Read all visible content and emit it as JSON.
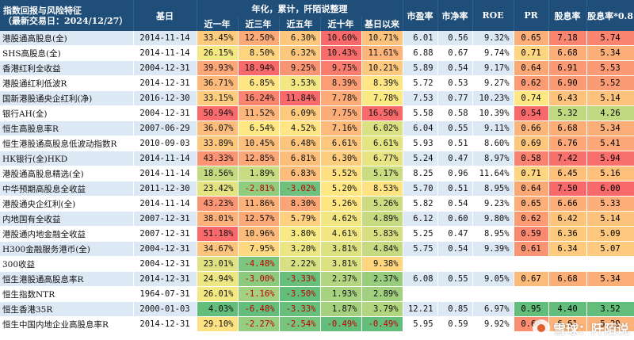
{
  "header": {
    "title": "指数回报与风险特征",
    "subtitle": "（最新交易日：2024/12/27）",
    "base_date": "基日",
    "group": "年化，累计，阡陌说整理",
    "periods": [
      "近一年",
      "近三年",
      "近五年",
      "近十年",
      "基日以来"
    ],
    "metrics": [
      "市盈率",
      "市净率",
      "ROE",
      "PR",
      "股息率",
      "股息率*0.8"
    ]
  },
  "rows": [
    {
      "name": "港股通高股息(全)",
      "date": "2014-11-14",
      "r": [
        "33.45%",
        "12.50%",
        "6.30%",
        "10.60%",
        "10.71%"
      ],
      "m": [
        "6.01",
        "0.56",
        "9.32%",
        "0.65",
        "7.18",
        "5.74"
      ]
    },
    {
      "name": "SHS高股息(全)",
      "date": "2014-11-14",
      "r": [
        "26.15%",
        "8.50%",
        "6.32%",
        "10.43%",
        "11.61%"
      ],
      "m": [
        "6.88",
        "0.67",
        "9.74%",
        "0.71",
        "6.68",
        "5.34"
      ]
    },
    {
      "name": "香港红利全收益",
      "date": "2004-12-31",
      "r": [
        "39.93%",
        "18.94%",
        "9.25%",
        "9.75%",
        "10.21%"
      ],
      "m": [
        "5.89",
        "0.54",
        "9.17%",
        "0.64",
        "6.91",
        "5.53"
      ]
    },
    {
      "name": "港股通红利低波R",
      "date": "2014-12-31",
      "r": [
        "36.71%",
        "6.85%",
        "3.53%",
        "8.39%",
        "8.39%"
      ],
      "m": [
        "5.72",
        "0.53",
        "9.27%",
        "0.62",
        "6.90",
        "5.52"
      ]
    },
    {
      "name": "国新港股通央企红利(净)",
      "date": "2016-12-30",
      "r": [
        "33.15%",
        "16.24%",
        "11.84%",
        "7.78%",
        "7.78%"
      ],
      "m": [
        "7.53",
        "0.77",
        "10.23%",
        "0.74",
        "6.43",
        "5.14"
      ]
    },
    {
      "name": "银行AH(全)",
      "date": "2004-12-31",
      "r": [
        "50.94%",
        "11.52%",
        "6.09%",
        "7.75%",
        "16.50%"
      ],
      "m": [
        "5.58",
        "0.58",
        "10.39%",
        "0.54",
        "5.32",
        "4.26"
      ]
    },
    {
      "name": "恒生高股息率R",
      "date": "2007-06-29",
      "r": [
        "36.07%",
        "6.54%",
        "4.52%",
        "7.16%",
        "6.02%"
      ],
      "m": [
        "6.04",
        "0.55",
        "9.11%",
        "0.66",
        "6.68",
        "5.34"
      ]
    },
    {
      "name": "恒生港股通高股息低波动指数R",
      "date": "2010-09-03",
      "r": [
        "33.89%",
        "10.45%",
        "6.48%",
        "6.61%",
        "6.61%"
      ],
      "m": [
        "5.93",
        "0.51",
        "8.60%",
        "0.69",
        "6.76",
        "5.41"
      ]
    },
    {
      "name": "HK银行(全)HKD",
      "date": "2014-11-14",
      "r": [
        "43.33%",
        "12.85%",
        "6.81%",
        "6.30%",
        "6.77%"
      ],
      "m": [
        "5.24",
        "0.47",
        "8.97%",
        "0.58",
        "7.42",
        "5.94"
      ]
    },
    {
      "name": "港股通高股息精选(全)",
      "date": "2014-11-14",
      "r": [
        "18.56%",
        "1.89%",
        "6.83%",
        "5.52%",
        "5.17%"
      ],
      "m": [
        "8.25",
        "0.96",
        "11.64%",
        "0.71",
        "6.45",
        "5.16"
      ]
    },
    {
      "name": "中华预期高股息全收益",
      "date": "2011-12-30",
      "r": [
        "23.42%",
        "-2.81%",
        "-3.02%",
        "5.20%",
        "8.53%"
      ],
      "m": [
        "5.70",
        "0.51",
        "8.95%",
        "0.64",
        "7.50",
        "6.00"
      ]
    },
    {
      "name": "港股通央企红利(全)",
      "date": "2014-11-14",
      "r": [
        "43.23%",
        "11.86%",
        "8.30%",
        "5.26%",
        "5.26%"
      ],
      "m": [
        "5.82",
        "0.54",
        "9.23%",
        "0.65",
        "6.66",
        "5.33"
      ]
    },
    {
      "name": "内地国有全收益",
      "date": "2007-12-31",
      "r": [
        "38.01%",
        "12.57%",
        "5.79%",
        "4.62%",
        "4.89%"
      ],
      "m": [
        "6.12",
        "0.60",
        "9.80%",
        "0.62",
        "6.42",
        "5.14"
      ]
    },
    {
      "name": "港股通内地金融全收益",
      "date": "2007-12-31",
      "r": [
        "51.18%",
        "10.96%",
        "3.80%",
        "4.61%",
        "5.83%"
      ],
      "m": [
        "5.25",
        "0.47",
        "8.95%",
        "0.59",
        "6.36",
        "5.09"
      ]
    },
    {
      "name": "H300金融服务港币(全)",
      "date": "2004-12-31",
      "r": [
        "34.67%",
        "7.95%",
        "3.20%",
        "3.81%",
        "4.84%"
      ],
      "m": [
        "5.75",
        "0.54",
        "9.39%",
        "0.61",
        "6.34",
        "5.07"
      ]
    },
    {
      "name": "300收益",
      "date": "2004-12-31",
      "r": [
        "23.01%",
        "-4.48%",
        "2.22%",
        "3.81%",
        "9.38%"
      ],
      "m": [
        "",
        "",
        "",
        "",
        "",
        ""
      ]
    },
    {
      "name": "恒生港股通高股息率R",
      "date": "2014-12-31",
      "r": [
        "24.94%",
        "-3.00%",
        "-3.33%",
        "2.37%",
        "2.37%"
      ],
      "m": [
        "6.08",
        "0.55",
        "9.05%",
        "0.67",
        "6.68",
        "5.34"
      ]
    },
    {
      "name": "恒生指数NTR",
      "date": "1964-07-31",
      "r": [
        "26.01%",
        "-1.16%",
        "-3.50%",
        "1.93%",
        "2.89%"
      ],
      "m": [
        "",
        "",
        "",
        "",
        "",
        ""
      ]
    },
    {
      "name": "恒生香港35R",
      "date": "2000-01-03",
      "r": [
        "4.03%",
        "-6.48%",
        "-3.33%",
        "1.87%",
        "3.79%"
      ],
      "m": [
        "12.21",
        "0.85",
        "6.97%",
        "0.95",
        "4.40",
        "3.52"
      ]
    },
    {
      "name": "恒生中国内地企业高股息率R",
      "date": "2014-12-31",
      "r": [
        "29.10%",
        "-2.27%",
        "-2.54%",
        "-0.49%",
        "-0.49%"
      ],
      "m": [
        "5.95",
        "0.59",
        "9.92%",
        "0.60",
        "6.61",
        "5.29"
      ]
    }
  ],
  "watermark": "雪球：阡陌说",
  "colors": {
    "header_bg": "#1f4e79",
    "stripe": "#dde8f5",
    "scale_low": "#63be7b",
    "scale_mid": "#ffeb84",
    "scale_high": "#f8696b"
  }
}
